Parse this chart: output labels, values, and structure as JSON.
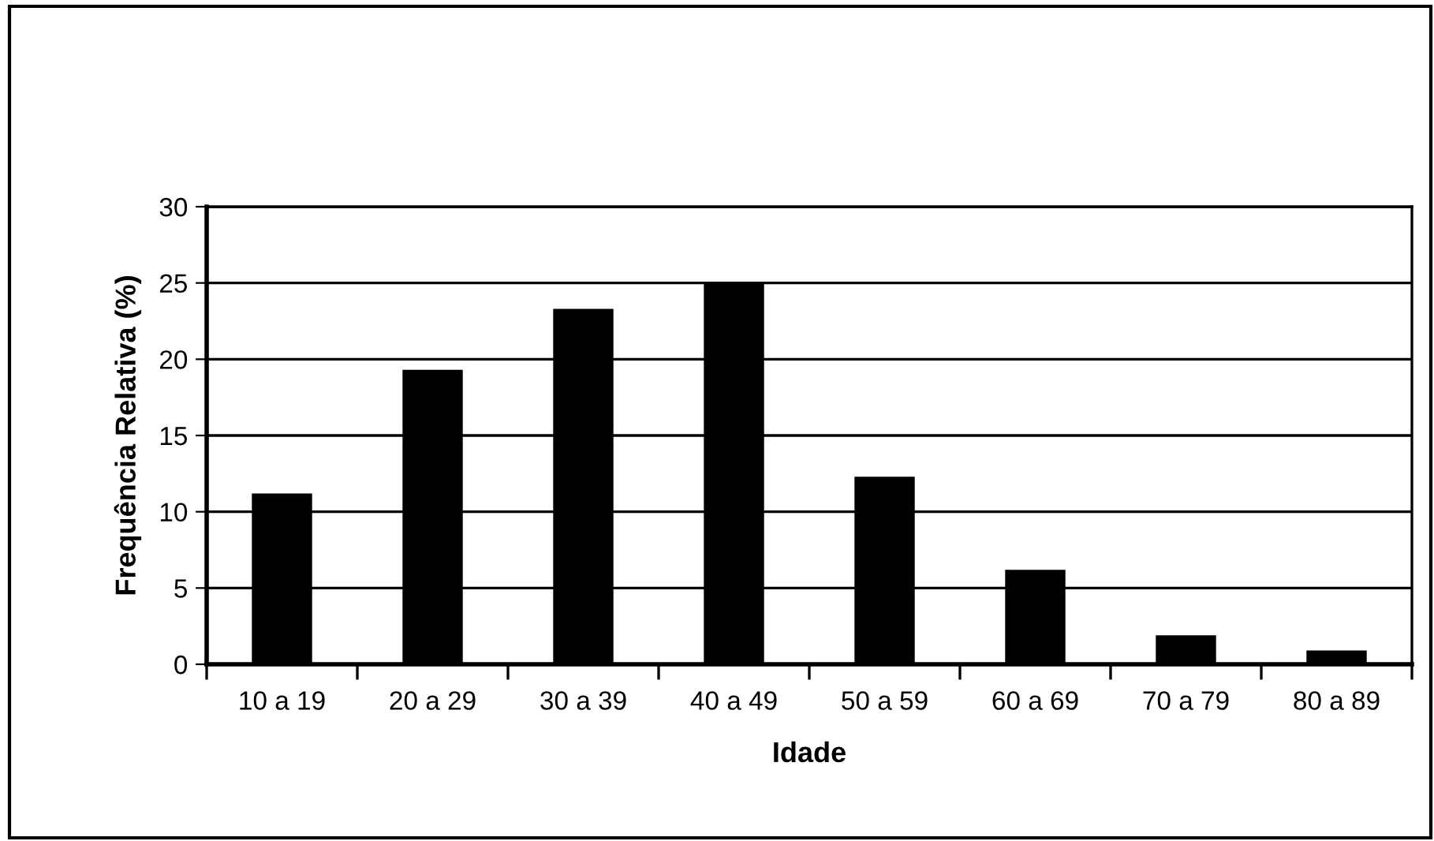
{
  "chart_data": {
    "type": "bar",
    "xlabel": "Idade",
    "ylabel": "Frequência Relativa (%)",
    "categories": [
      "10 a 19",
      "20 a 29",
      "30 a 39",
      "40 a 49",
      "50 a 59",
      "60 a 69",
      "70 a 79",
      "80 a 89"
    ],
    "values": [
      11.2,
      19.3,
      23.3,
      25,
      12.3,
      6.2,
      1.9,
      0.9
    ],
    "color": "#000000",
    "ylim": [
      0,
      30
    ],
    "yticks": [
      0,
      5,
      10,
      15,
      20,
      25,
      30
    ],
    "grid": "y"
  }
}
